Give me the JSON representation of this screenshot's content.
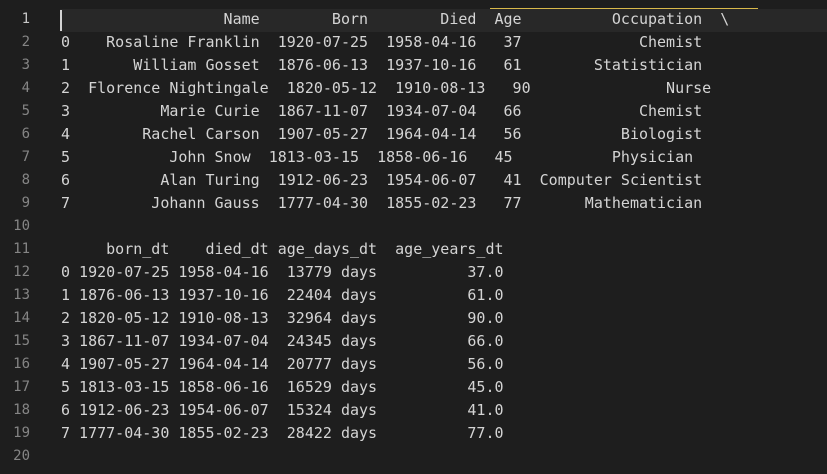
{
  "editor": {
    "lines": [
      {
        "number": "1",
        "text": "                  Name        Born        Died  Age          Occupation  \\"
      },
      {
        "number": "2",
        "text": "0    Rosaline Franklin  1920-07-25  1958-04-16   37             Chemist  "
      },
      {
        "number": "3",
        "text": "1       William Gosset  1876-06-13  1937-10-16   61        Statistician  "
      },
      {
        "number": "4",
        "text": "2  Florence Nightingale  1820-05-12  1910-08-13   90               Nurse  "
      },
      {
        "number": "5",
        "text": "3          Marie Curie  1867-11-07  1934-07-04   66             Chemist  "
      },
      {
        "number": "6",
        "text": "4        Rachel Carson  1907-05-27  1964-04-14   56           Biologist  "
      },
      {
        "number": "7",
        "text": "5           John Snow  1813-03-15  1858-06-16   45           Physician  "
      },
      {
        "number": "8",
        "text": "6          Alan Turing  1912-06-23  1954-06-07   41  Computer Scientist  "
      },
      {
        "number": "9",
        "text": "7         Johann Gauss  1777-04-30  1855-02-23   77       Mathematician  "
      },
      {
        "number": "10",
        "text": ""
      },
      {
        "number": "11",
        "text": "     born_dt    died_dt age_days_dt  age_years_dt"
      },
      {
        "number": "12",
        "text": "0 1920-07-25 1958-04-16  13779 days          37.0"
      },
      {
        "number": "13",
        "text": "1 1876-06-13 1937-10-16  22404 days          61.0"
      },
      {
        "number": "14",
        "text": "2 1820-05-12 1910-08-13  32964 days          90.0"
      },
      {
        "number": "15",
        "text": "3 1867-11-07 1934-07-04  24345 days          66.0"
      },
      {
        "number": "16",
        "text": "4 1907-05-27 1964-04-14  20777 days          56.0"
      },
      {
        "number": "17",
        "text": "5 1813-03-15 1858-06-16  16529 days          45.0"
      },
      {
        "number": "18",
        "text": "6 1912-06-23 1954-06-07  15324 days          41.0"
      },
      {
        "number": "19",
        "text": "7 1777-04-30 1855-02-23  28422 days          77.0"
      },
      {
        "number": "20",
        "text": ""
      }
    ]
  },
  "colors": {
    "background": "#1e1e1e",
    "text": "#d4d4d4",
    "line_number": "#858585",
    "current_line": "#282828",
    "bracket_highlight": "#d9b94a"
  }
}
